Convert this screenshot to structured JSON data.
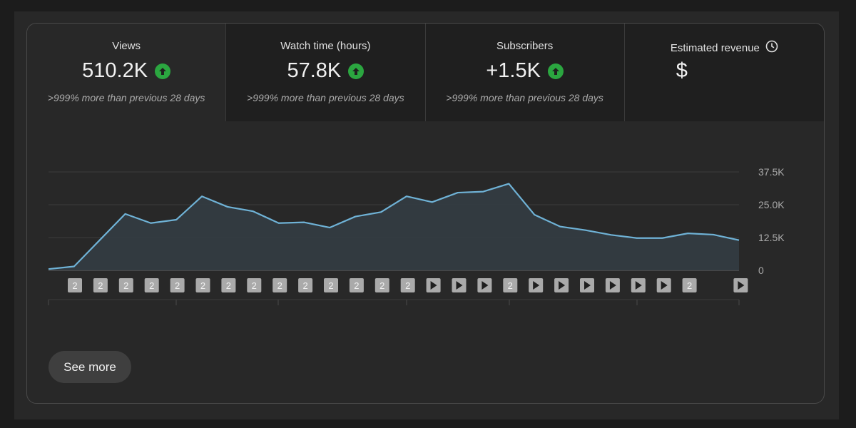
{
  "metrics": [
    {
      "label": "Views",
      "value": "510.2K",
      "change": ">999% more than previous 28 days",
      "trend_icon": "arrow-up-circle-icon"
    },
    {
      "label": "Watch time (hours)",
      "value": "57.8K",
      "change": ">999% more than previous 28 days",
      "trend_icon": "arrow-up-circle-icon"
    },
    {
      "label": "Subscribers",
      "value": "+1.5K",
      "change": ">999% more than previous 28 days",
      "trend_icon": "arrow-up-circle-icon"
    },
    {
      "label": "Estimated revenue",
      "value": "$",
      "info_icon": "clock-icon"
    }
  ],
  "see_more_label": "See more",
  "colors": {
    "accent_line": "#6fb2d6",
    "area_fill": "#333c42",
    "trend_up": "#2ba640",
    "marker_bg": "#aaaaaa"
  },
  "chart_data": {
    "type": "area",
    "title": "Views",
    "x": [
      1,
      2,
      3,
      4,
      5,
      6,
      7,
      8,
      9,
      10,
      11,
      12,
      13,
      14,
      15,
      16,
      17,
      18,
      19,
      20,
      21,
      22,
      23,
      24,
      25,
      26,
      27,
      28,
      29
    ],
    "values": [
      500,
      1500,
      11500,
      21500,
      18000,
      19300,
      28200,
      24200,
      22500,
      18000,
      18300,
      16300,
      20500,
      22200,
      28200,
      26000,
      29600,
      30000,
      33000,
      21200,
      16700,
      15300,
      13500,
      12300,
      12300,
      14100,
      13600,
      11500,
      null
    ],
    "ylim": [
      0,
      37500
    ],
    "yticks": [
      "0",
      "12.5K",
      "25.0K",
      "37.5K"
    ],
    "ytick_values": [
      0,
      12500,
      25000,
      37500
    ],
    "grid": true,
    "video_markers": [
      "2",
      "2",
      "2",
      "2",
      "2",
      "2",
      "2",
      "2",
      "2",
      "2",
      "2",
      "2",
      "2",
      "2",
      "play",
      "play",
      "play",
      "2",
      "play",
      "play",
      "play",
      "play",
      "play",
      "play",
      "2",
      "",
      "play"
    ]
  }
}
